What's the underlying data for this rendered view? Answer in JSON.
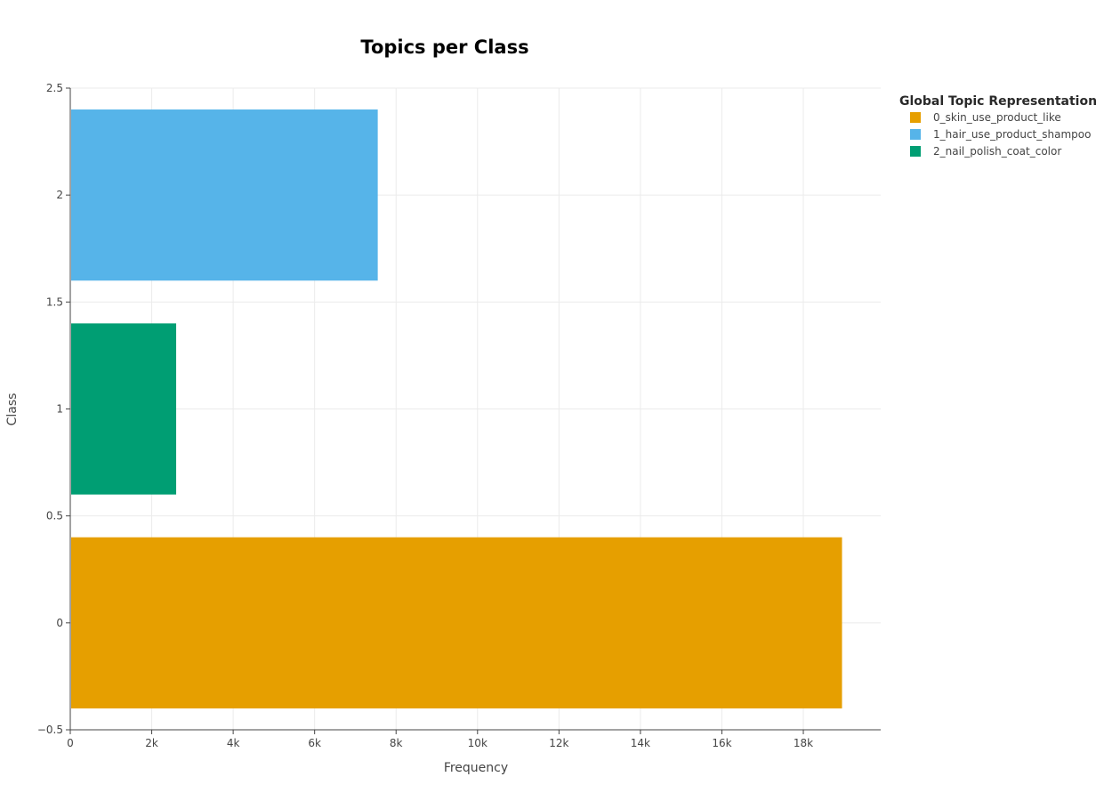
{
  "chart_data": {
    "type": "bar",
    "orientation": "horizontal",
    "title": "Topics per Class",
    "xlabel": "Frequency",
    "ylabel": "Class",
    "xlim": [
      0,
      19900
    ],
    "ylim": [
      -0.5,
      2.5
    ],
    "x_ticks": [
      0,
      2000,
      4000,
      6000,
      8000,
      10000,
      12000,
      14000,
      16000,
      18000
    ],
    "x_tick_labels": [
      "0",
      "2k",
      "4k",
      "6k",
      "8k",
      "10k",
      "12k",
      "14k",
      "16k",
      "18k"
    ],
    "y_ticks": [
      -0.5,
      0,
      0.5,
      1,
      1.5,
      2,
      2.5
    ],
    "y_tick_labels": [
      "−0.5",
      "0",
      "0.5",
      "1",
      "1.5",
      "2",
      "2.5"
    ],
    "grid": true,
    "legend": {
      "title": "Global Topic Representation",
      "placement": "right"
    },
    "series": [
      {
        "name": "0_skin_use_product_like",
        "color": "#E69F00",
        "class": 0,
        "value": 18950
      },
      {
        "name": "1_hair_use_product_shampoo",
        "color": "#56B4E9",
        "class": 2,
        "value": 7550
      },
      {
        "name": "2_nail_polish_coat_color",
        "color": "#009E73",
        "class": 1,
        "value": 2600
      }
    ]
  }
}
